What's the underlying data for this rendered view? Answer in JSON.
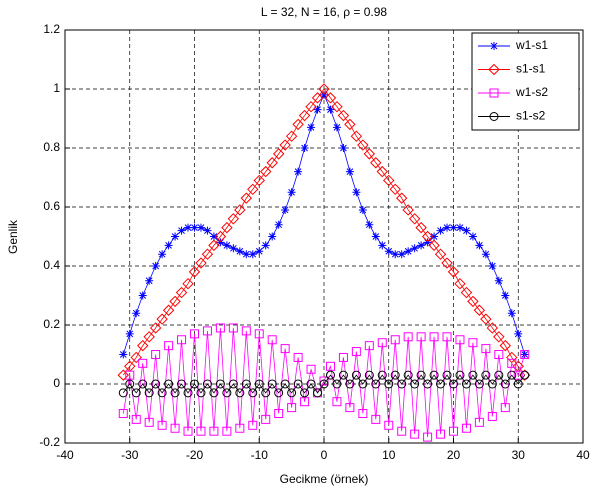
{
  "chart_data": {
    "type": "line",
    "title": "L = 32,  N = 16,  ρ = 0.98",
    "x_label": "Gecikme (örnek)",
    "y_label": "Genlik",
    "x": [
      -31,
      -30,
      -29,
      -28,
      -27,
      -26,
      -25,
      -24,
      -23,
      -22,
      -21,
      -20,
      -19,
      -18,
      -17,
      -16,
      -15,
      -14,
      -13,
      -12,
      -11,
      -10,
      -9,
      -8,
      -7,
      -6,
      -5,
      -4,
      -3,
      -2,
      -1,
      0,
      1,
      2,
      3,
      4,
      5,
      6,
      7,
      8,
      9,
      10,
      11,
      12,
      13,
      14,
      15,
      16,
      17,
      18,
      19,
      20,
      21,
      22,
      23,
      24,
      25,
      26,
      27,
      28,
      29,
      30,
      31
    ],
    "series": [
      {
        "name": "w1-s1",
        "color": "#0000ff",
        "marker": "star",
        "values": [
          0.1,
          0.17,
          0.24,
          0.3,
          0.35,
          0.4,
          0.44,
          0.47,
          0.5,
          0.52,
          0.53,
          0.53,
          0.53,
          0.52,
          0.5,
          0.48,
          0.47,
          0.46,
          0.45,
          0.44,
          0.44,
          0.45,
          0.47,
          0.5,
          0.54,
          0.59,
          0.65,
          0.72,
          0.8,
          0.87,
          0.93,
          0.98,
          0.93,
          0.87,
          0.8,
          0.72,
          0.65,
          0.59,
          0.54,
          0.5,
          0.47,
          0.45,
          0.44,
          0.44,
          0.45,
          0.46,
          0.47,
          0.48,
          0.5,
          0.52,
          0.53,
          0.53,
          0.53,
          0.52,
          0.5,
          0.47,
          0.44,
          0.4,
          0.35,
          0.3,
          0.24,
          0.17,
          0.1
        ]
      },
      {
        "name": "s1-s1",
        "color": "#ff0000",
        "marker": "diamond",
        "values": [
          0.03,
          0.06,
          0.09,
          0.13,
          0.16,
          0.19,
          0.22,
          0.25,
          0.28,
          0.31,
          0.34,
          0.38,
          0.41,
          0.44,
          0.47,
          0.5,
          0.53,
          0.56,
          0.59,
          0.63,
          0.66,
          0.69,
          0.72,
          0.75,
          0.78,
          0.81,
          0.84,
          0.88,
          0.91,
          0.94,
          0.97,
          1.0,
          0.97,
          0.94,
          0.91,
          0.88,
          0.84,
          0.81,
          0.78,
          0.75,
          0.72,
          0.69,
          0.66,
          0.63,
          0.59,
          0.56,
          0.53,
          0.5,
          0.47,
          0.44,
          0.41,
          0.38,
          0.34,
          0.31,
          0.28,
          0.25,
          0.22,
          0.19,
          0.16,
          0.13,
          0.09,
          0.06,
          0.03
        ]
      },
      {
        "name": "w1-s2",
        "color": "#ff00ff",
        "marker": "square",
        "values": [
          -0.1,
          0.03,
          -0.12,
          0.07,
          -0.13,
          0.1,
          -0.14,
          0.13,
          -0.15,
          0.15,
          -0.16,
          0.17,
          -0.16,
          0.18,
          -0.16,
          0.19,
          -0.16,
          0.19,
          -0.15,
          0.18,
          -0.14,
          0.17,
          -0.12,
          0.15,
          -0.1,
          0.12,
          -0.08,
          0.09,
          -0.06,
          0.05,
          -0.03,
          0.01,
          0.06,
          -0.06,
          0.09,
          -0.08,
          0.11,
          -0.1,
          0.13,
          -0.12,
          0.14,
          -0.14,
          0.15,
          -0.16,
          0.16,
          -0.17,
          0.16,
          -0.18,
          0.16,
          -0.17,
          0.16,
          -0.16,
          0.15,
          -0.15,
          0.14,
          -0.13,
          0.12,
          -0.11,
          0.1,
          -0.08,
          0.07,
          0.03,
          0.1
        ]
      },
      {
        "name": "s1-s2",
        "color": "#000000",
        "marker": "circle",
        "values": [
          -0.03,
          0,
          -0.03,
          0,
          -0.03,
          0,
          -0.03,
          0,
          -0.03,
          0,
          -0.03,
          0,
          -0.03,
          0,
          -0.03,
          0,
          -0.03,
          0,
          -0.03,
          0,
          -0.03,
          0,
          -0.03,
          0,
          -0.03,
          0,
          -0.03,
          0,
          -0.03,
          0,
          -0.03,
          0,
          0.03,
          0,
          0.03,
          0,
          0.03,
          0,
          0.03,
          0,
          0.03,
          0,
          0.03,
          0,
          0.03,
          0,
          0.03,
          0,
          0.03,
          0,
          0.03,
          0,
          0.03,
          0,
          0.03,
          0,
          0.03,
          0,
          0.03,
          0,
          0.03,
          0,
          0.03
        ]
      }
    ],
    "xlim": [
      -40,
      40
    ],
    "xticks": [
      -40,
      -30,
      -20,
      -10,
      0,
      10,
      20,
      30,
      40
    ],
    "ylim": [
      -0.2,
      1.2
    ],
    "yticks": [
      -0.2,
      0,
      0.2,
      0.4,
      0.6,
      0.8,
      1,
      1.2
    ],
    "grid": true,
    "legend_position": "northeast"
  }
}
